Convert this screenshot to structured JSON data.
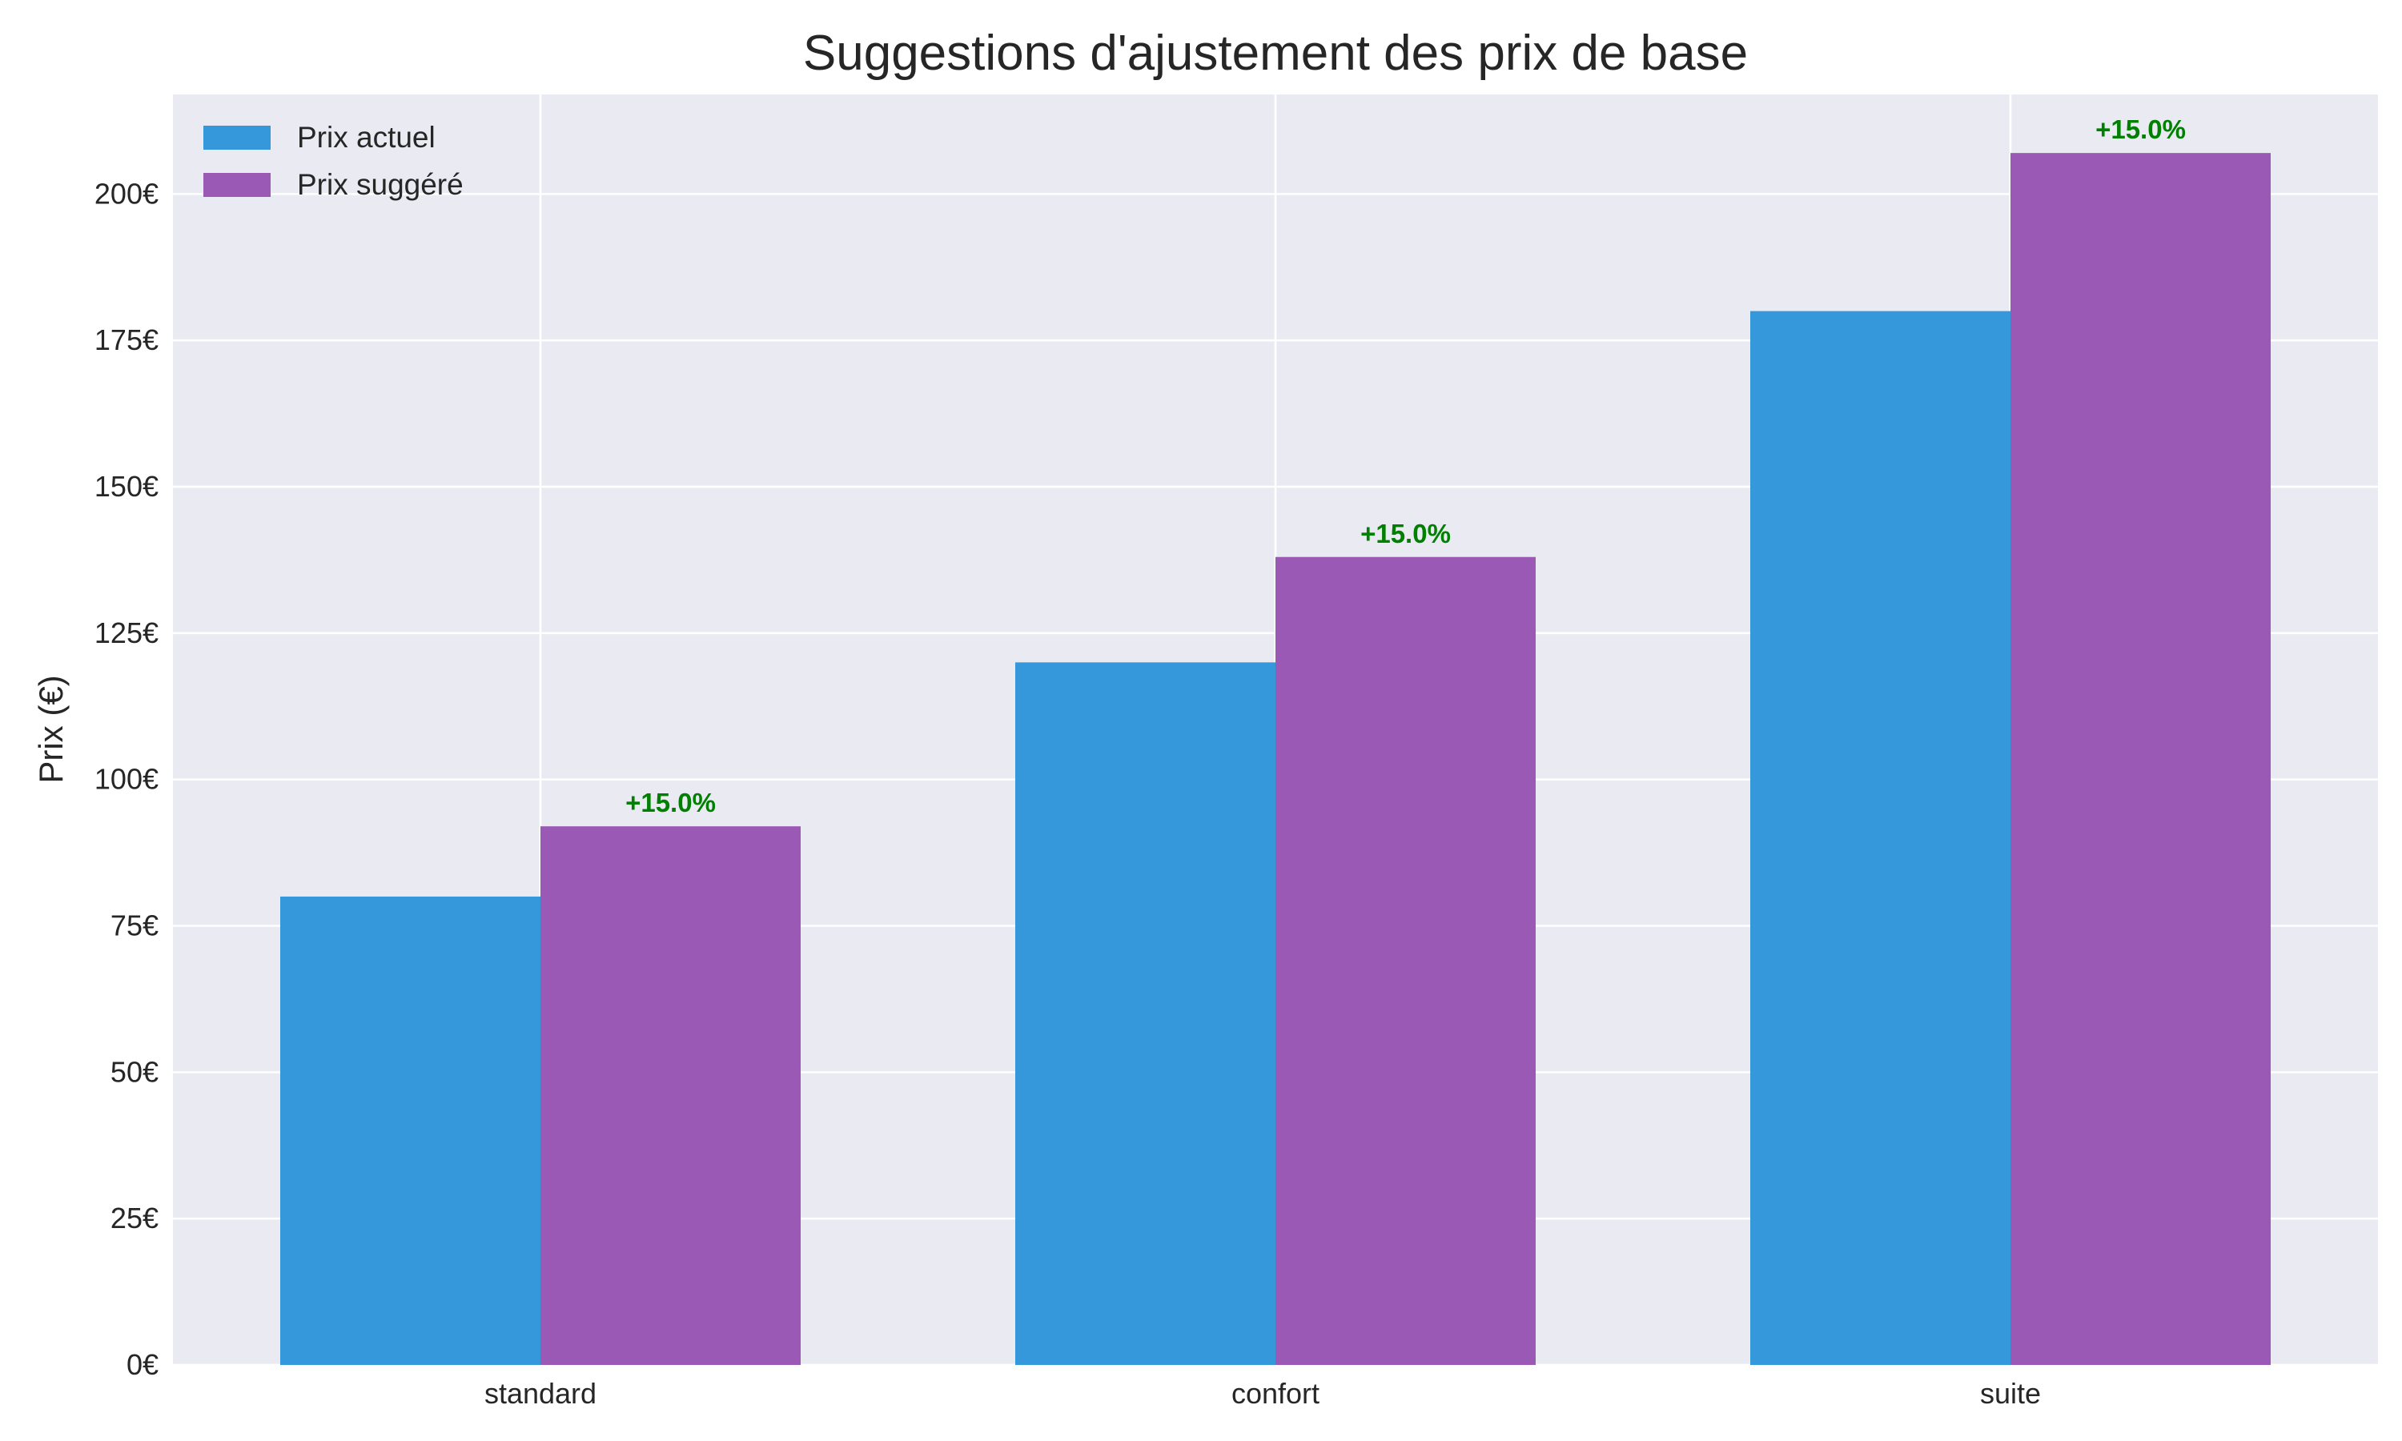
{
  "chart_data": {
    "type": "bar",
    "title": "Suggestions d'ajustement des prix de base",
    "xlabel": "",
    "ylabel": "Prix (€)",
    "categories": [
      "standard",
      "confort",
      "suite"
    ],
    "series": [
      {
        "name": "Prix actuel",
        "values": [
          80,
          120,
          180
        ],
        "color": "#3598db"
      },
      {
        "name": "Prix suggéré",
        "values": [
          92,
          138,
          207
        ],
        "color": "#9a59b5"
      }
    ],
    "annotations": [
      "+15.0%",
      "+15.0%",
      "+15.0%"
    ],
    "annotation_color": "#008000",
    "ylim": [
      0,
      217
    ],
    "yticks": [
      0,
      25,
      50,
      75,
      100,
      125,
      150,
      175,
      200
    ],
    "tick_suffix": "€",
    "grid": true,
    "background": "#eaeaf2",
    "legend_position": "top-left"
  }
}
